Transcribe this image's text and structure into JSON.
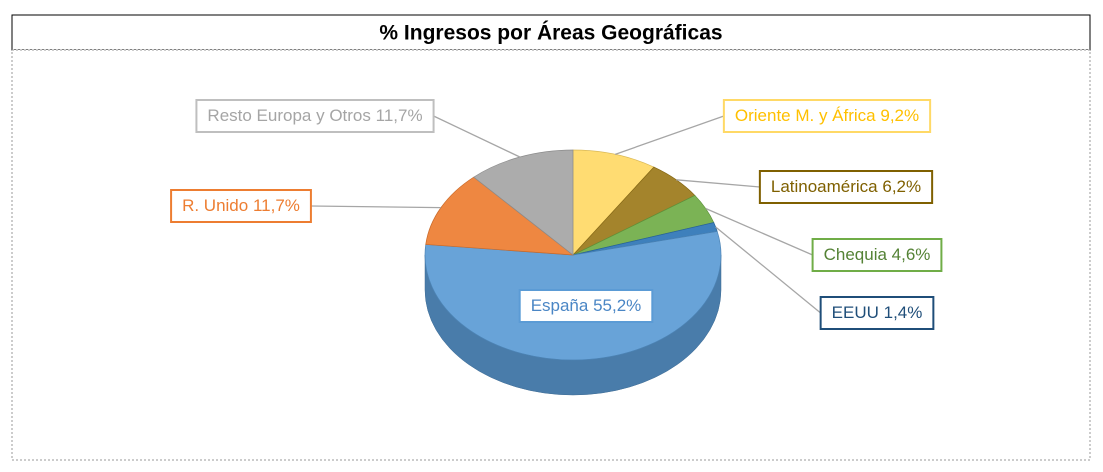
{
  "chart_data": {
    "type": "pie",
    "title": "% Ingresos por Áreas Geográficas",
    "categories": [
      "Oriente M. y África",
      "Latinoamérica",
      "Chequia",
      "EEUU",
      "España",
      "R. Unido",
      "Resto Europa y Otros"
    ],
    "values": [
      9.2,
      6.2,
      4.6,
      1.4,
      55.2,
      11.7,
      11.7
    ],
    "value_labels": [
      "9,2%",
      "6,2%",
      "4,6%",
      "1,4%",
      "55,2%",
      "11,7%",
      "11,7%"
    ],
    "colors": [
      "#ffd966",
      "#9c7a1a",
      "#70ad47",
      "#2e75b6",
      "#5b9bd5",
      "#ed7d31",
      "#a5a5a5"
    ]
  }
}
